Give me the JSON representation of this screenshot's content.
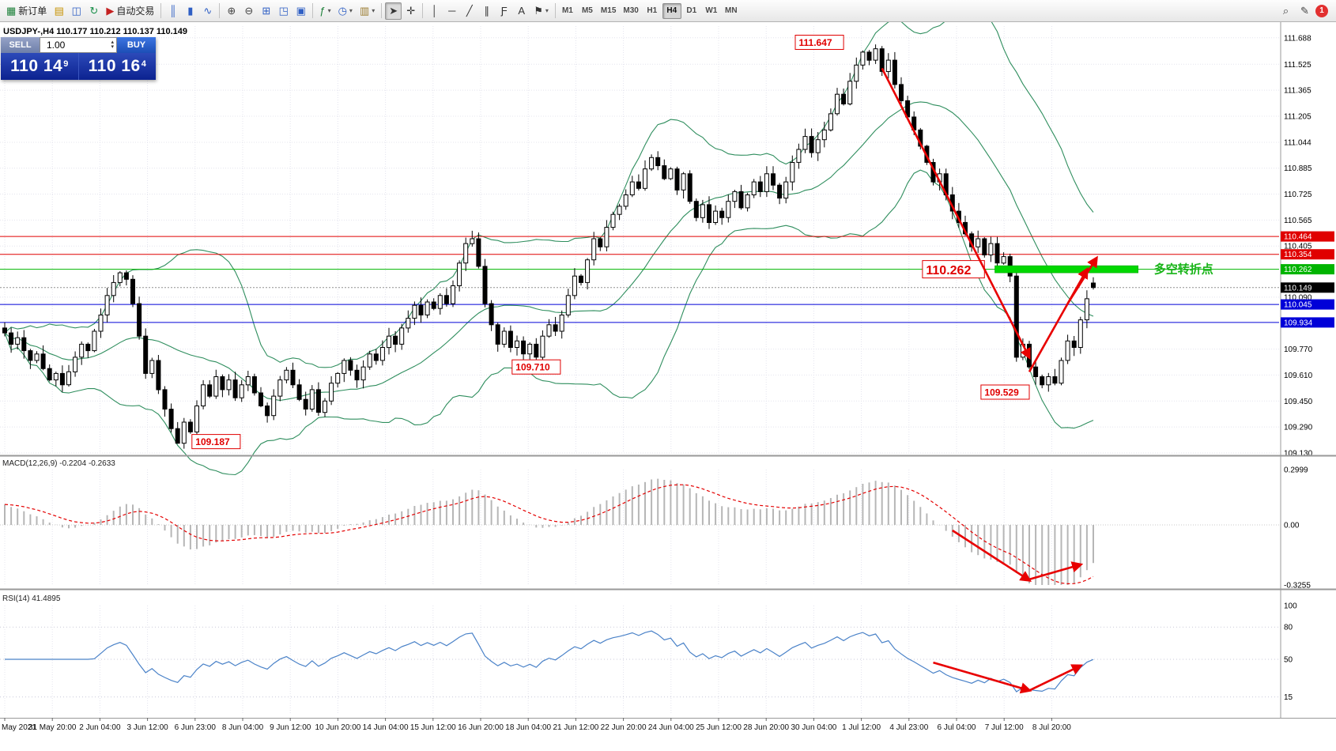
{
  "toolbar": {
    "badge": "1",
    "dd_glyph": "▾",
    "items": [
      {
        "name": "new-order-button",
        "glyph": "▦",
        "glyph_color": "#1a7f37",
        "label": "新订单"
      },
      {
        "name": "market-watch-button",
        "glyph": "▤",
        "glyph_color": "#c79200"
      },
      {
        "name": "data-window-button",
        "glyph": "◫",
        "glyph_color": "#2f5fc4"
      },
      {
        "name": "refresh-button",
        "glyph": "↻",
        "glyph_color": "#1a8f4a"
      },
      {
        "name": "autotrading-button",
        "glyph": "▶",
        "glyph_color": "#c42020",
        "label": "自动交易"
      },
      {
        "sep": true
      },
      {
        "name": "bars-chart-button",
        "glyph": "║",
        "glyph_color": "#2f5fc4"
      },
      {
        "name": "candles-chart-button",
        "glyph": "▮",
        "glyph_color": "#2f5fc4"
      },
      {
        "name": "line-chart-button",
        "glyph": "∿",
        "glyph_color": "#2f5fc4"
      },
      {
        "sep": true
      },
      {
        "name": "zoom-in-button",
        "glyph": "⊕",
        "glyph_color": "#444444"
      },
      {
        "name": "zoom-out-button",
        "glyph": "⊖",
        "glyph_color": "#444444"
      },
      {
        "name": "tile-windows-button",
        "glyph": "⊞",
        "glyph_color": "#2f5fc4"
      },
      {
        "name": "auto-scroll-button",
        "glyph": "◳",
        "glyph_color": "#2f5fc4"
      },
      {
        "name": "chart-shift-button",
        "glyph": "▣",
        "glyph_color": "#2f5fc4"
      },
      {
        "sep": true
      },
      {
        "name": "indicators-button",
        "glyph": "ƒ",
        "glyph_color": "#1a7f37",
        "dropdown": true
      },
      {
        "name": "periods-button",
        "glyph": "◷",
        "glyph_color": "#2f5fc4",
        "dropdown": true
      },
      {
        "name": "templates-button",
        "glyph": "▥",
        "glyph_color": "#9a7b2f",
        "dropdown": true
      },
      {
        "sep": true
      },
      {
        "name": "cursor-button",
        "glyph": "➤",
        "glyph_color": "#333333",
        "active": true
      },
      {
        "name": "crosshair-button",
        "glyph": "✛",
        "glyph_color": "#333333"
      },
      {
        "sep": true
      },
      {
        "name": "vertical-line-button",
        "glyph": "│",
        "glyph_color": "#333333"
      },
      {
        "name": "horizontal-line-button",
        "glyph": "─",
        "glyph_color": "#333333"
      },
      {
        "name": "trendline-button",
        "glyph": "╱",
        "glyph_color": "#333333"
      },
      {
        "name": "channel-button",
        "glyph": "∥",
        "glyph_color": "#333333"
      },
      {
        "name": "fibonacci-button",
        "glyph": "Ƒ",
        "glyph_color": "#333333"
      },
      {
        "name": "text-button",
        "glyph": "A",
        "glyph_color": "#333333"
      },
      {
        "name": "arrows-button",
        "glyph": "⚑",
        "glyph_color": "#333333",
        "dropdown": true
      },
      {
        "sep": true
      }
    ],
    "timeframes": [
      "M1",
      "M5",
      "M15",
      "M30",
      "H1",
      "H4",
      "D1",
      "W1",
      "MN"
    ],
    "active_timeframe": "H4",
    "right_items": [
      {
        "name": "search-icon",
        "glyph": "⌕"
      },
      {
        "name": "edit-icon",
        "glyph": "✎"
      }
    ]
  },
  "symbol_header": {
    "line": "USDJPY-,H4  110.177 110.212 110.137 110.149"
  },
  "trade_panel": {
    "sell_label": "SELL",
    "buy_label": "BUY",
    "volume": "1.00",
    "spin_up": "▴",
    "spin_down": "▾",
    "bid_big": "110 14",
    "bid_sup": "9",
    "ask_big": "110 16",
    "ask_sup": "4"
  },
  "colors": {
    "bands": "#2f8e5e",
    "rsi_line": "#4a82c8",
    "macd_hist": "#b6b6b6",
    "macd_signal": "#e40000",
    "arrow": "#e80000",
    "grid": "#e4e4ee"
  },
  "chart": {
    "price_axis": [
      111.688,
      111.525,
      111.365,
      111.205,
      111.044,
      110.885,
      110.725,
      110.565,
      110.405,
      110.09,
      109.77,
      109.61,
      109.45,
      109.29,
      109.13
    ],
    "hlines": [
      {
        "price": 110.464,
        "color": "#e00000",
        "tag": "110.464"
      },
      {
        "price": 110.354,
        "color": "#e00000",
        "tag": "110.354"
      },
      {
        "price": 110.262,
        "color": "#00b400",
        "tag": "110.262"
      },
      {
        "price": 110.045,
        "color": "#0000d8",
        "tag": "110.045"
      },
      {
        "price": 109.934,
        "color": "#0000d8",
        "tag": "109.934"
      },
      {
        "price": 110.149,
        "color": "#909090",
        "dash": "2,2",
        "tag": "110.149",
        "tag_color": "#000000"
      }
    ],
    "green_zone": {
      "from_bar": 155,
      "to_bar": 177,
      "price": 110.262,
      "label": "多空转折点",
      "color": "#00d800",
      "label_color": "#18b418"
    },
    "annotations": [
      {
        "text": "111.647",
        "bar": 131,
        "price": 111.66,
        "align": "right",
        "size": 12
      },
      {
        "text": "109.187",
        "bar": 33,
        "price": 109.2,
        "align": "center",
        "size": 12
      },
      {
        "text": "109.710",
        "bar": 83,
        "price": 109.66,
        "align": "center",
        "size": 12
      },
      {
        "text": "109.529",
        "bar": 160,
        "price": 109.505,
        "align": "right",
        "size": 12
      },
      {
        "text": "110.262",
        "bar": 153,
        "price": 110.262,
        "align": "right",
        "size": 16
      }
    ],
    "arrows": [
      {
        "panel": "main",
        "from": [
          137,
          111.5
        ],
        "to": [
          160,
          109.72
        ]
      },
      {
        "panel": "main",
        "from": [
          160,
          109.63
        ],
        "to": [
          169,
          110.26
        ]
      },
      {
        "panel": "main",
        "from": [
          166,
          110.05
        ],
        "to": [
          170.5,
          110.33
        ]
      },
      {
        "panel": "macd",
        "from": [
          148,
          -0.03
        ],
        "to": [
          160,
          -0.3
        ]
      },
      {
        "panel": "macd",
        "from": [
          160,
          -0.295
        ],
        "to": [
          168,
          -0.215
        ]
      },
      {
        "panel": "rsi",
        "from": [
          145,
          47
        ],
        "to": [
          160,
          21
        ]
      },
      {
        "panel": "rsi",
        "from": [
          160,
          21
        ],
        "to": [
          168,
          44
        ]
      }
    ],
    "time_labels": [
      "May 2021",
      "31 May 20:00",
      "2 Jun 04:00",
      "3 Jun 12:00",
      "6 Jun 23:00",
      "8 Jun 04:00",
      "9 Jun 12:00",
      "10 Jun 20:00",
      "14 Jun 04:00",
      "15 Jun 12:00",
      "16 Jun 20:00",
      "18 Jun 04:00",
      "21 Jun 12:00",
      "22 Jun 20:00",
      "24 Jun 04:00",
      "25 Jun 12:00",
      "28 Jun 20:00",
      "30 Jun 04:00",
      "1 Jul 12:00",
      "4 Jul 23:00",
      "6 Jul 04:00",
      "7 Jul 12:00",
      "8 Jul 20:00"
    ],
    "candles": {
      "closes": [
        109.87,
        109.8,
        109.84,
        109.76,
        109.7,
        109.74,
        109.65,
        109.58,
        109.62,
        109.55,
        109.63,
        109.72,
        109.8,
        109.76,
        109.88,
        109.98,
        110.1,
        110.18,
        110.24,
        110.2,
        110.05,
        109.85,
        109.62,
        109.7,
        109.52,
        109.4,
        109.28,
        109.19,
        109.32,
        109.26,
        109.42,
        109.55,
        109.48,
        109.6,
        109.52,
        109.58,
        109.47,
        109.55,
        109.6,
        109.5,
        109.42,
        109.36,
        109.48,
        109.58,
        109.64,
        109.55,
        109.46,
        109.4,
        109.52,
        109.38,
        109.45,
        109.56,
        109.62,
        109.7,
        109.64,
        109.58,
        109.66,
        109.74,
        109.7,
        109.78,
        109.85,
        109.8,
        109.9,
        109.96,
        110.04,
        109.98,
        110.06,
        110.02,
        110.1,
        110.05,
        110.16,
        110.3,
        110.42,
        110.45,
        110.28,
        110.05,
        109.92,
        109.8,
        109.88,
        109.78,
        109.82,
        109.74,
        109.8,
        109.72,
        109.85,
        109.92,
        109.88,
        109.98,
        110.1,
        110.22,
        110.18,
        110.32,
        110.45,
        110.4,
        110.52,
        110.6,
        110.65,
        110.72,
        110.8,
        110.76,
        110.88,
        110.95,
        110.9,
        110.82,
        110.88,
        110.75,
        110.85,
        110.68,
        110.58,
        110.66,
        110.55,
        110.62,
        110.58,
        110.68,
        110.74,
        110.64,
        110.72,
        110.8,
        110.74,
        110.85,
        110.78,
        110.7,
        110.8,
        110.92,
        111.0,
        111.08,
        110.98,
        111.06,
        111.12,
        111.22,
        111.34,
        111.28,
        111.42,
        111.52,
        111.6,
        111.55,
        111.62,
        111.48,
        111.55,
        111.4,
        111.3,
        111.2,
        111.12,
        111.02,
        110.92,
        110.8,
        110.85,
        110.72,
        110.62,
        110.55,
        110.48,
        110.4,
        110.45,
        110.35,
        110.42,
        110.3,
        110.34,
        110.22,
        109.72,
        109.8,
        109.66,
        109.6,
        109.55,
        109.6,
        109.56,
        109.7,
        109.82,
        109.78,
        109.95,
        110.08,
        110.149
      ],
      "overrides": {
        "27": {
          "l": 109.187
        },
        "136": {
          "h": 111.647
        },
        "162": {
          "l": 109.529
        }
      },
      "last_ohlc": [
        110.177,
        110.212,
        110.137,
        110.149
      ]
    }
  },
  "macd": {
    "title": "MACD(12,26,9) -0.2204 -0.2633",
    "axis": [
      {
        "label": "0.2999",
        "v": 0.2999
      },
      {
        "label": "0.00",
        "v": 0
      },
      {
        "label": "-0.3255",
        "v": -0.3255
      }
    ]
  },
  "rsi": {
    "title": "RSI(14) 41.4895",
    "levels": [
      80,
      50,
      15
    ],
    "axis": [
      {
        "label": "100",
        "v": 100
      },
      {
        "label": "80",
        "v": 80
      },
      {
        "label": "50",
        "v": 50
      },
      {
        "label": "15",
        "v": 15
      }
    ]
  }
}
